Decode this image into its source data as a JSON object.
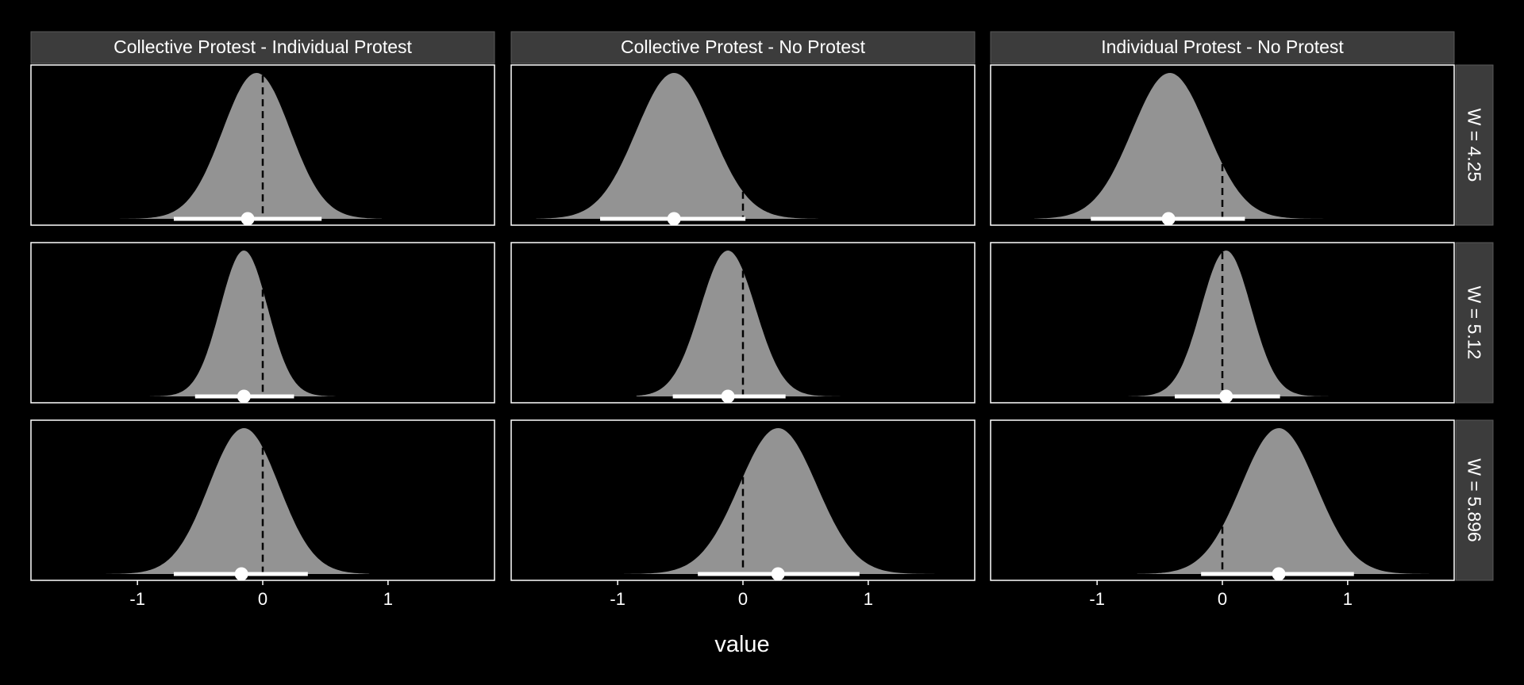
{
  "chart_data": {
    "type": "area",
    "xlabel": "value",
    "ylabel": "",
    "xlim": [
      -1.85,
      1.85
    ],
    "x_ticks": [
      -1,
      0,
      1
    ],
    "x_tick_labels": [
      "-1",
      "0",
      "1"
    ],
    "reference_line_x": 0,
    "columns": [
      "Collective Protest - Individual Protest",
      "Collective Protest - No Protest",
      "Individual Protest - No Protest"
    ],
    "rows": [
      "W = 4.25",
      "W = 5.12",
      "W = 5.896"
    ],
    "facets": [
      {
        "row": 0,
        "col": 0,
        "density": {
          "center": -0.05,
          "sd": 0.27,
          "range": [
            -1.3,
            0.95
          ]
        },
        "point_estimate": -0.12,
        "interval": [
          -0.71,
          0.47
        ]
      },
      {
        "row": 0,
        "col": 1,
        "density": {
          "center": -0.55,
          "sd": 0.3,
          "range": [
            -1.65,
            0.6
          ]
        },
        "point_estimate": -0.55,
        "interval": [
          -1.14,
          0.02
        ]
      },
      {
        "row": 0,
        "col": 2,
        "density": {
          "center": -0.42,
          "sd": 0.3,
          "range": [
            -1.5,
            0.98
          ]
        },
        "point_estimate": -0.43,
        "interval": [
          -1.05,
          0.18
        ]
      },
      {
        "row": 1,
        "col": 0,
        "density": {
          "center": -0.15,
          "sd": 0.19,
          "range": [
            -0.9,
            0.58
          ]
        },
        "point_estimate": -0.15,
        "interval": [
          -0.54,
          0.25
        ]
      },
      {
        "row": 1,
        "col": 1,
        "density": {
          "center": -0.12,
          "sd": 0.22,
          "range": [
            -0.85,
            0.9
          ]
        },
        "point_estimate": -0.12,
        "interval": [
          -0.56,
          0.34
        ]
      },
      {
        "row": 1,
        "col": 2,
        "density": {
          "center": 0.03,
          "sd": 0.2,
          "range": [
            -0.75,
            0.85
          ]
        },
        "point_estimate": 0.03,
        "interval": [
          -0.38,
          0.46
        ]
      },
      {
        "row": 2,
        "col": 0,
        "density": {
          "center": -0.15,
          "sd": 0.28,
          "range": [
            -1.25,
            0.85
          ]
        },
        "point_estimate": -0.17,
        "interval": [
          -0.71,
          0.36
        ]
      },
      {
        "row": 2,
        "col": 1,
        "density": {
          "center": 0.28,
          "sd": 0.31,
          "range": [
            -0.95,
            1.65
          ]
        },
        "point_estimate": 0.28,
        "interval": [
          -0.36,
          0.93
        ]
      },
      {
        "row": 2,
        "col": 2,
        "density": {
          "center": 0.45,
          "sd": 0.3,
          "range": [
            -0.68,
            1.65
          ]
        },
        "point_estimate": 0.45,
        "interval": [
          -0.17,
          1.05
        ]
      }
    ],
    "colors": {
      "background": "#000000",
      "panel_border": "#ffffff",
      "density_fill": "#939393",
      "strip_fill": "#3c3c3c",
      "interval": "#ffffff",
      "reference_line": "#000000",
      "text": "#ffffff"
    }
  }
}
